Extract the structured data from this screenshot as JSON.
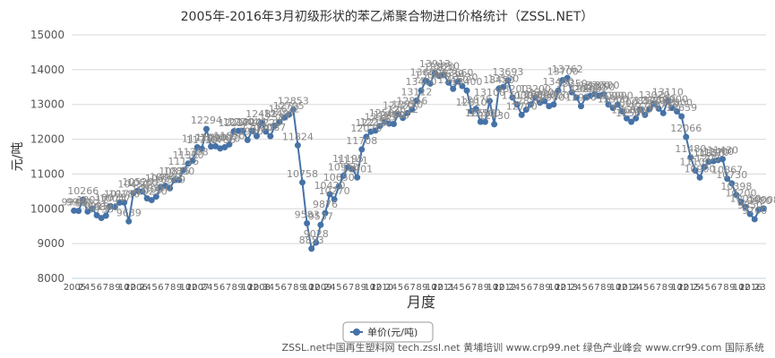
{
  "chart_data": {
    "type": "line",
    "title": "2005年-2016年3月初级形状的苯乙烯聚合物进口价格统计（ZSSL.NET）",
    "ylabel": "元/吨",
    "xlabel": "月度",
    "ylim": [
      8000,
      15000
    ],
    "yticks": [
      8000,
      9000,
      10000,
      11000,
      12000,
      13000,
      14000,
      15000
    ],
    "grid": true,
    "legend_position": "bottom",
    "line_color": "#4572A7",
    "series": [
      {
        "name": "单价(元/吨)",
        "values": [
          9945,
          9939,
          10266,
          9922,
          10011,
          9815,
          9735,
          9800,
          10075,
          10047,
          10177,
          10180,
          9639,
          10452,
          10520,
          10500,
          10300,
          10250,
          10350,
          10630,
          10660,
          10589,
          10825,
          10830,
          11115,
          11300,
          11388,
          11770,
          11730,
          12294,
          11790,
          11800,
          11735,
          11770,
          11850,
          12227,
          12240,
          12244,
          11980,
          12241,
          12090,
          12481,
          12220,
          12087,
          12387,
          12497,
          12622,
          12705,
          12853,
          11824,
          10758,
          9583,
          8853,
          9028,
          9537,
          9876,
          10420,
          10270,
          10650,
          10950,
          11195,
          11141,
          10901,
          11708,
          12070,
          12218,
          12250,
          12383,
          12500,
          12450,
          12440,
          12720,
          12612,
          12750,
          12856,
          13112,
          13400,
          13680,
          13600,
          13913,
          13820,
          13850,
          13630,
          13450,
          13660,
          13530,
          13400,
          12810,
          12875,
          12500,
          12500,
          13100,
          12430,
          13450,
          13500,
          13693,
          13200,
          13000,
          12700,
          12850,
          13000,
          13200,
          13050,
          13100,
          12950,
          13000,
          13400,
          13700,
          13762,
          13350,
          13200,
          12950,
          13200,
          13250,
          13300,
          13250,
          13300,
          13000,
          12900,
          13000,
          12800,
          12600,
          12500,
          12600,
          12850,
          12700,
          12870,
          13020,
          12880,
          12750,
          13110,
          12900,
          12800,
          12659,
          12066,
          11480,
          11100,
          10900,
          11200,
          11350,
          11370,
          11400,
          11430,
          10867,
          10730,
          10398,
          10200,
          10050,
          9850,
          9700,
          9980,
          10008
        ]
      }
    ],
    "data_labels": [
      "9945",
      "9939",
      "10266",
      "9922",
      "10011",
      "9815",
      "9735",
      "9800",
      "10075",
      "10047",
      "10177",
      "10180",
      "9639",
      "10452",
      "10520",
      "10500",
      "10300",
      "10250",
      "10350",
      "10630",
      "10660",
      "10589",
      "10825",
      "10830",
      "11115",
      "11300",
      "11388",
      "11770",
      "11730",
      "12294",
      "11790",
      "11800",
      "11735",
      "11770",
      "11850",
      "12227",
      "12240",
      "12244",
      "11980",
      "12241",
      "12090",
      "12481",
      "12220",
      "12087",
      "12387",
      "12497",
      "12622",
      "12705",
      "12853",
      "11824",
      "10758",
      "9583",
      "8853",
      "9028",
      "9537",
      "9876",
      "10420",
      "10270",
      "10650",
      "10950",
      "11195",
      "11141",
      "10901",
      "11708",
      "12070",
      "12218",
      "12250",
      "12383",
      "12500",
      "12450",
      "12440",
      "12720",
      "12612",
      "12750",
      "12856",
      "13112",
      "13400",
      "13680",
      "13600",
      "13913",
      "13820",
      "13850",
      "13630",
      "13450",
      "13660",
      "13530",
      "13400",
      "12810",
      "12875",
      "12500",
      "12500",
      "13100",
      "12430",
      "13450",
      "13500",
      "13693",
      "13200",
      "13000",
      "12700",
      "12850",
      "13000",
      "13200",
      "13050",
      "13100",
      "12950",
      "13000",
      "13400",
      "13700",
      "13762",
      "13350",
      "13200",
      "12950",
      "13200",
      "13250",
      "13300",
      "13250",
      "13300",
      "13000",
      "12900",
      "13000",
      "12800",
      "12600",
      "12500",
      "12600",
      "12850",
      "12700",
      "12870",
      "13020",
      "12880",
      "12750",
      "13110",
      "12900",
      "12800",
      "12659",
      "12066",
      "11480",
      "11100",
      "10900",
      "11200",
      "11350",
      "11370",
      "11400",
      "11430",
      "10867",
      "10730",
      "10398",
      "10200",
      "10050",
      "9850",
      "9700",
      "9980",
      "10008"
    ],
    "x_tick_labels": [
      "2005",
      "2",
      "4",
      "5",
      "6",
      "7",
      "8",
      "9",
      "10",
      "12",
      "2006",
      "2",
      "4",
      "5",
      "6",
      "7",
      "8",
      "9",
      "10",
      "12",
      "2007",
      "2",
      "4",
      "5",
      "6",
      "7",
      "8",
      "9",
      "10",
      "12",
      "2008",
      "3",
      "4",
      "5",
      "6",
      "7",
      "8",
      "9",
      "10",
      "12",
      "2009",
      "2",
      "4",
      "5",
      "6",
      "7",
      "8",
      "9",
      "10",
      "12",
      "2010",
      "2",
      "4",
      "5",
      "6",
      "7",
      "8",
      "9",
      "10",
      "12",
      "2011",
      "2",
      "4",
      "5",
      "6",
      "7",
      "8",
      "9",
      "10",
      "12",
      "2012",
      "2",
      "4",
      "5",
      "6",
      "7",
      "8",
      "9",
      "10",
      "12",
      "2013",
      "2",
      "4",
      "5",
      "6",
      "7",
      "8",
      "9",
      "10",
      "12",
      "2014",
      "2",
      "4",
      "5",
      "6",
      "7",
      "8",
      "9",
      "10",
      "12",
      "2015",
      "2",
      "4",
      "5",
      "6",
      "7",
      "8",
      "9",
      "10",
      "12",
      "2016",
      "2",
      "3"
    ]
  },
  "footer": {
    "text": "ZSSL.net中国再生塑料网 tech.zssl.net 黄埔培训 www.crp99.net 绿色产业峰会 www.crr99.com 国际系统"
  }
}
